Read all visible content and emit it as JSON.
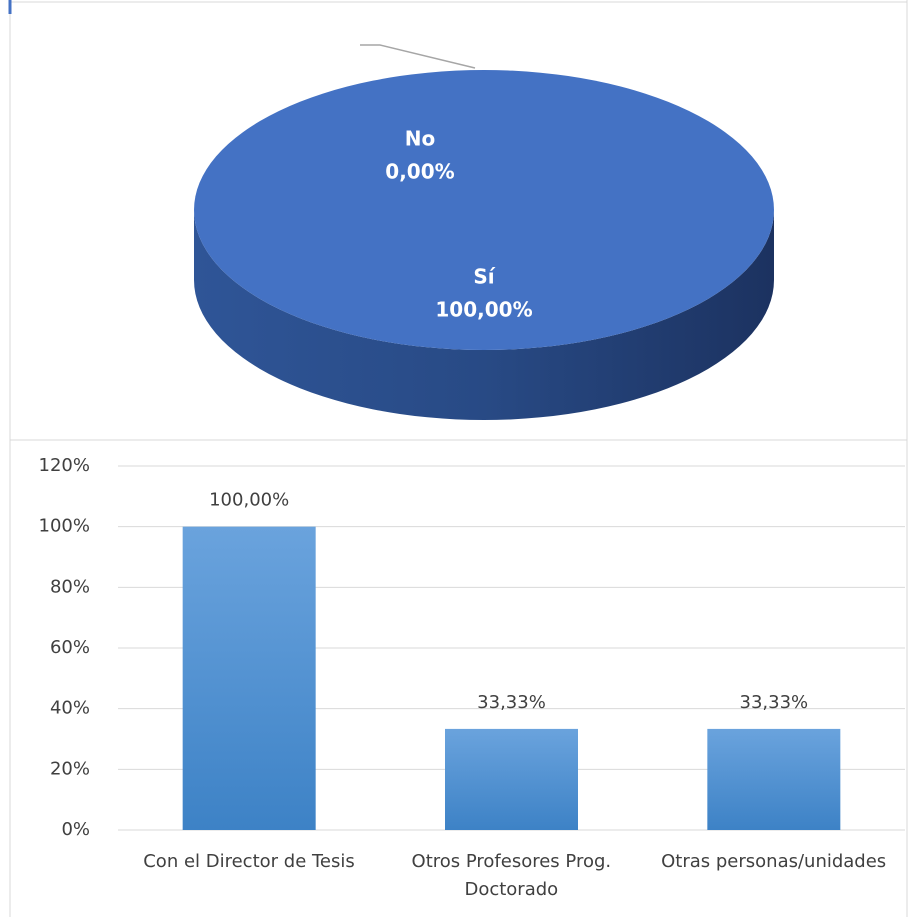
{
  "chart_data": [
    {
      "type": "pie3d",
      "categories": [
        "No",
        "Sí"
      ],
      "values": [
        0,
        100
      ],
      "value_labels": [
        "0,00%",
        "100,00%"
      ],
      "color": "#4472c4"
    },
    {
      "type": "bar",
      "categories": [
        "Con el Director de Tesis",
        "Otros Profesores Prog. Doctorado",
        "Otras personas/unidades"
      ],
      "values": [
        100,
        33.33,
        33.33
      ],
      "value_labels": [
        "100,00%",
        "33,33%",
        "33,33%"
      ],
      "color": "#5b9bd5",
      "ylim": [
        0,
        120
      ],
      "yticks": [
        {
          "value": 0,
          "label": "0%"
        },
        {
          "value": 20,
          "label": "20%"
        },
        {
          "value": 40,
          "label": "40%"
        },
        {
          "value": 60,
          "label": "60%"
        },
        {
          "value": 80,
          "label": "80%"
        },
        {
          "value": 100,
          "label": "100%"
        },
        {
          "value": 120,
          "label": "120%"
        }
      ],
      "grid": true
    }
  ]
}
